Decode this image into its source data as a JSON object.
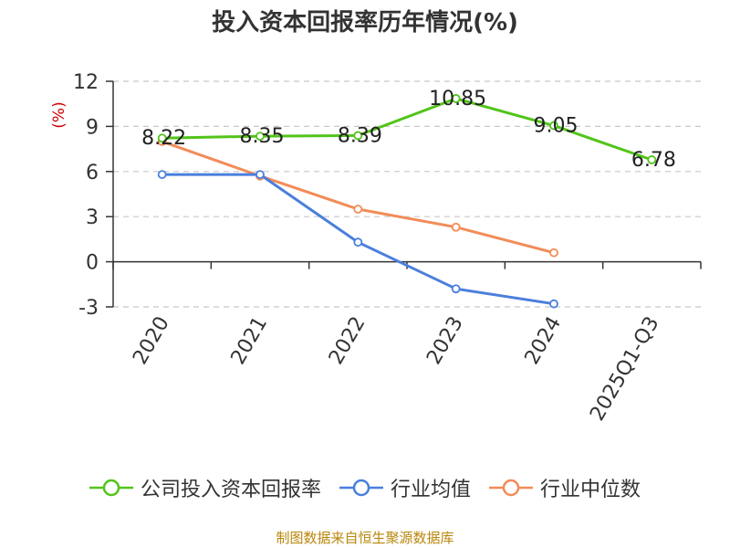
{
  "chart_data": {
    "type": "line",
    "title": "投入资本回报率历年情况(%)",
    "ylabel": "(%)",
    "xlabel": "",
    "ylim": [
      -3,
      12
    ],
    "yticks": [
      12,
      9,
      6,
      3,
      0,
      -3
    ],
    "categories": [
      "2020",
      "2021",
      "2022",
      "2023",
      "2024",
      "2025Q1-Q3"
    ],
    "grid": true,
    "legend_position": "bottom",
    "series": [
      {
        "name": "公司投入资本回报率",
        "color": "#52c41a",
        "values": [
          8.22,
          8.35,
          8.39,
          10.85,
          9.05,
          6.78
        ],
        "labels": [
          "8.22",
          "8.35",
          "8.39",
          "10.85",
          "9.05",
          "6.78"
        ]
      },
      {
        "name": "行业均值",
        "color": "#4a7fdc",
        "values": [
          5.8,
          5.8,
          1.3,
          -1.8,
          -2.8,
          null
        ]
      },
      {
        "name": "行业中位数",
        "color": "#f28c58",
        "values": [
          8.0,
          5.7,
          3.5,
          2.3,
          0.6,
          null
        ]
      }
    ]
  },
  "source": "制图数据来自恒生聚源数据库"
}
